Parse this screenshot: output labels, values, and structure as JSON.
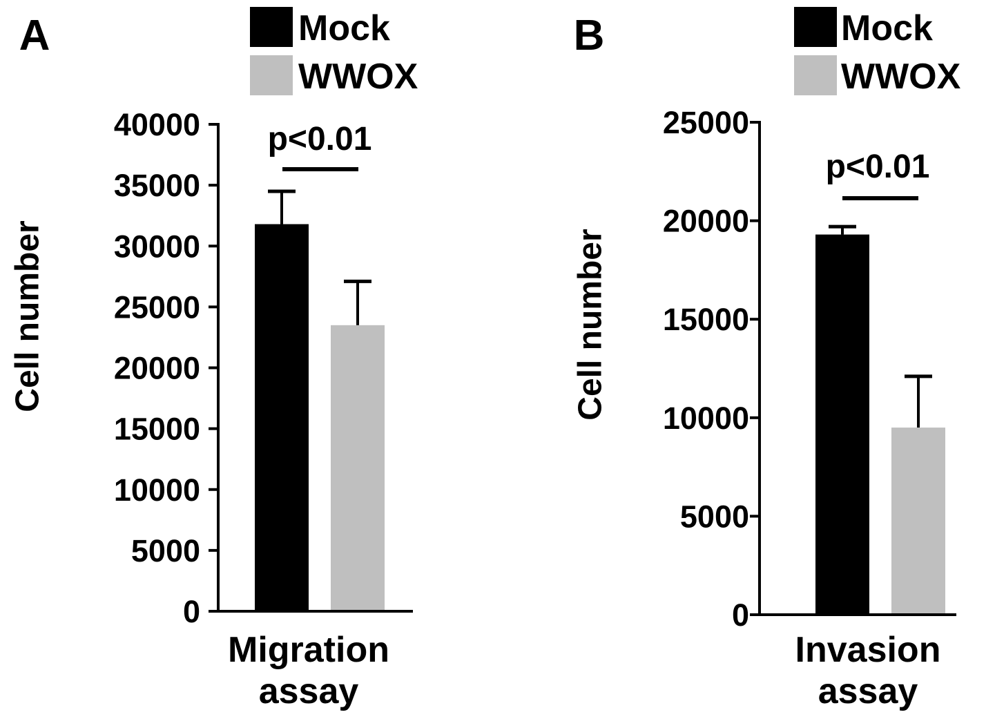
{
  "chart_data": [
    {
      "type": "bar",
      "panel_label": "A",
      "title": "",
      "xlabel": "Migration assay",
      "xlabel_lines": [
        "Migration",
        "assay"
      ],
      "ylabel": "Cell number",
      "ylim": [
        0,
        40000
      ],
      "yticks": [
        0,
        5000,
        10000,
        15000,
        20000,
        25000,
        30000,
        35000,
        40000
      ],
      "ytick_labels": [
        "0",
        "5000",
        "10000",
        "15000",
        "20000",
        "25000",
        "30000",
        "35000",
        "40000"
      ],
      "categories": [
        "Migration assay"
      ],
      "series": [
        {
          "name": "Mock",
          "color": "#000000",
          "values": [
            31800
          ],
          "error": [
            2700
          ]
        },
        {
          "name": "WWOX",
          "color": "#bfbfbf",
          "values": [
            23500
          ],
          "error": [
            3600
          ]
        }
      ],
      "annotations": [
        {
          "text": "p<0.01",
          "between": [
            "Mock",
            "WWOX"
          ]
        }
      ],
      "legend": {
        "position": "top",
        "items": [
          "Mock",
          "WWOX"
        ]
      },
      "grid": false
    },
    {
      "type": "bar",
      "panel_label": "B",
      "title": "",
      "xlabel": "Invasion assay",
      "xlabel_lines": [
        "Invasion",
        "assay"
      ],
      "ylabel": "Cell number",
      "ylim": [
        0,
        25000
      ],
      "yticks": [
        0,
        5000,
        10000,
        15000,
        20000,
        25000
      ],
      "ytick_labels": [
        "0",
        "5000",
        "10000",
        "15000",
        "20000",
        "25000"
      ],
      "categories": [
        "Invasion assay"
      ],
      "series": [
        {
          "name": "Mock",
          "color": "#000000",
          "values": [
            19300
          ],
          "error": [
            400
          ]
        },
        {
          "name": "WWOX",
          "color": "#bfbfbf",
          "values": [
            9500
          ],
          "error": [
            2600
          ]
        }
      ],
      "annotations": [
        {
          "text": "p<0.01",
          "between": [
            "Mock",
            "WWOX"
          ]
        }
      ],
      "legend": {
        "position": "top",
        "items": [
          "Mock",
          "WWOX"
        ]
      },
      "grid": false
    }
  ]
}
